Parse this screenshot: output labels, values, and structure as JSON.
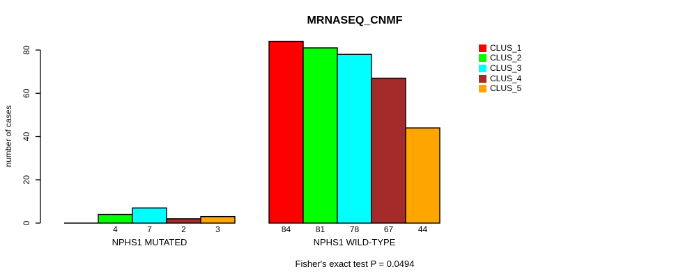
{
  "page": {
    "background_color": "#FFFFFF",
    "text_color": "#000000"
  },
  "chart_data": {
    "type": "bar",
    "title": "MRNASEQ_CNMF",
    "subtitle": "Fisher's exact test P = 0.0494",
    "xlabel": "",
    "ylabel": "number of cases",
    "ylim": [
      0,
      80
    ],
    "yticks": [
      0,
      20,
      40,
      60,
      80
    ],
    "grid": false,
    "legend_position": "right",
    "axis_color": "#000000",
    "categories": [
      "NPHS1 MUTATED",
      "NPHS1 WILD-TYPE"
    ],
    "series": [
      {
        "name": "CLUS_1",
        "color": "#FF0000",
        "values": [
          0,
          84
        ]
      },
      {
        "name": "CLUS_2",
        "color": "#00FF00",
        "values": [
          4,
          81
        ]
      },
      {
        "name": "CLUS_3",
        "color": "#00FFFF",
        "values": [
          7,
          78
        ]
      },
      {
        "name": "CLUS_4",
        "color": "#A52A2A",
        "values": [
          2,
          67
        ]
      },
      {
        "name": "CLUS_5",
        "color": "#FFA500",
        "values": [
          3,
          44
        ]
      }
    ],
    "bar_value_labels": [
      [
        "",
        "4",
        "7",
        "2",
        "3"
      ],
      [
        "84",
        "81",
        "78",
        "67",
        "44"
      ]
    ]
  }
}
